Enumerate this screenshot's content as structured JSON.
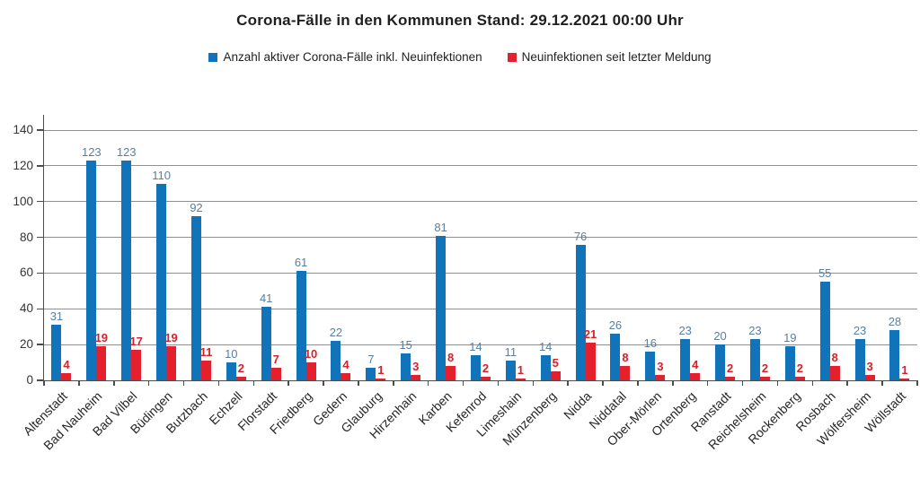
{
  "title": "Corona-Fälle in den Kommunen Stand: 29.12.2021 00:00 Uhr",
  "legend": [
    {
      "key": "active-cases",
      "label": "Anzahl aktiver Corona-Fälle inkl. Neuinfektionen",
      "color": "#1173BA"
    },
    {
      "key": "new-infections",
      "label": "Neuinfektionen seit letzter Meldung",
      "color": "#E4202C"
    }
  ],
  "chart_data": {
    "type": "bar",
    "title": "Corona-Fälle in den Kommunen Stand: 29.12.2021 00:00 Uhr",
    "xlabel": "",
    "ylabel": "",
    "ylim": [
      0,
      140
    ],
    "y_ticks": [
      0,
      20,
      40,
      60,
      80,
      100,
      120,
      140
    ],
    "grid": true,
    "legend_position": "top",
    "categories": [
      "Altenstadt",
      "Bad Nauheim",
      "Bad Vilbel",
      "Büdingen",
      "Butzbach",
      "Echzell",
      "Florstadt",
      "Friedberg",
      "Gedern",
      "Glauburg",
      "Hirzenhain",
      "Karben",
      "Kefenrod",
      "Limeshain",
      "Münzenberg",
      "Nidda",
      "Niddatal",
      "Ober-Mörlen",
      "Ortenberg",
      "Ranstadt",
      "Reichelsheim",
      "Rockenberg",
      "Rosbach",
      "Wölfersheim",
      "Wöllstadt"
    ],
    "series": [
      {
        "key": "active-cases",
        "name": "Anzahl aktiver Corona-Fälle inkl. Neuinfektionen",
        "color": "#1173BA",
        "label_color": "#5B7F9E",
        "label_bold": false,
        "values": [
          31,
          123,
          123,
          110,
          92,
          10,
          41,
          61,
          22,
          7,
          15,
          81,
          14,
          11,
          14,
          76,
          26,
          16,
          23,
          20,
          23,
          19,
          55,
          23,
          28
        ]
      },
      {
        "key": "new-infections",
        "name": "Neuinfektionen seit letzter Meldung",
        "color": "#E4202C",
        "label_color": "#D62129",
        "label_bold": true,
        "values": [
          4,
          19,
          17,
          19,
          11,
          2,
          7,
          10,
          4,
          1,
          3,
          8,
          2,
          1,
          5,
          21,
          8,
          3,
          4,
          2,
          2,
          2,
          8,
          3,
          1
        ]
      }
    ]
  }
}
